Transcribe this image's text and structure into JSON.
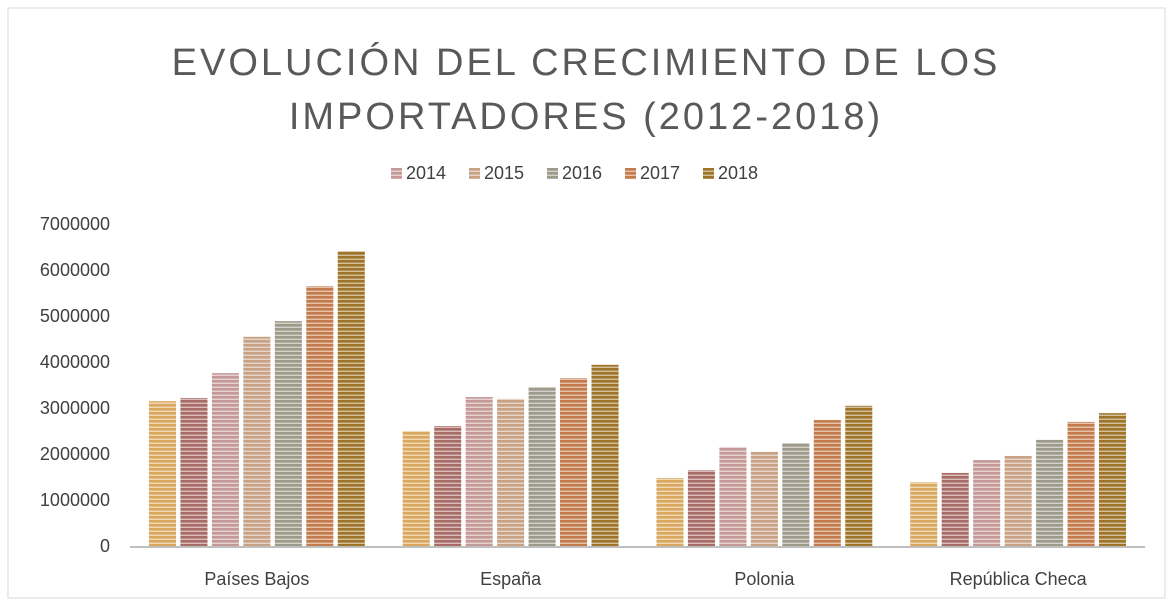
{
  "chart_data": {
    "type": "bar",
    "title": "EVOLUCIÓN DEL CRECIMIENTO DE LOS IMPORTADORES (2012-2018)",
    "categories": [
      "Países Bajos",
      "España",
      "Polonia",
      "República Checa"
    ],
    "series": [
      {
        "color": "#d9a85e",
        "values": [
          3170000,
          2520000,
          1500000,
          1410000
        ]
      },
      {
        "color": "#a86c66",
        "values": [
          3240000,
          2630000,
          1670000,
          1610000
        ]
      },
      {
        "name": "2014",
        "color": "#c49a96",
        "values": [
          3780000,
          3260000,
          2170000,
          1890000
        ]
      },
      {
        "name": "2015",
        "color": "#c8a285",
        "values": [
          4570000,
          3220000,
          2070000,
          1980000
        ]
      },
      {
        "name": "2016",
        "color": "#9d9a8a",
        "values": [
          4910000,
          3480000,
          2260000,
          2330000
        ]
      },
      {
        "name": "2017",
        "color": "#c47a4c",
        "values": [
          5670000,
          3670000,
          2760000,
          2720000
        ]
      },
      {
        "name": "2018",
        "color": "#9e7428",
        "values": [
          6430000,
          3960000,
          3070000,
          2910000
        ]
      }
    ],
    "ylim": [
      0,
      7000000
    ],
    "yticks": [
      0,
      1000000,
      2000000,
      3000000,
      4000000,
      5000000,
      6000000,
      7000000
    ],
    "grid": false,
    "legend": "top"
  }
}
